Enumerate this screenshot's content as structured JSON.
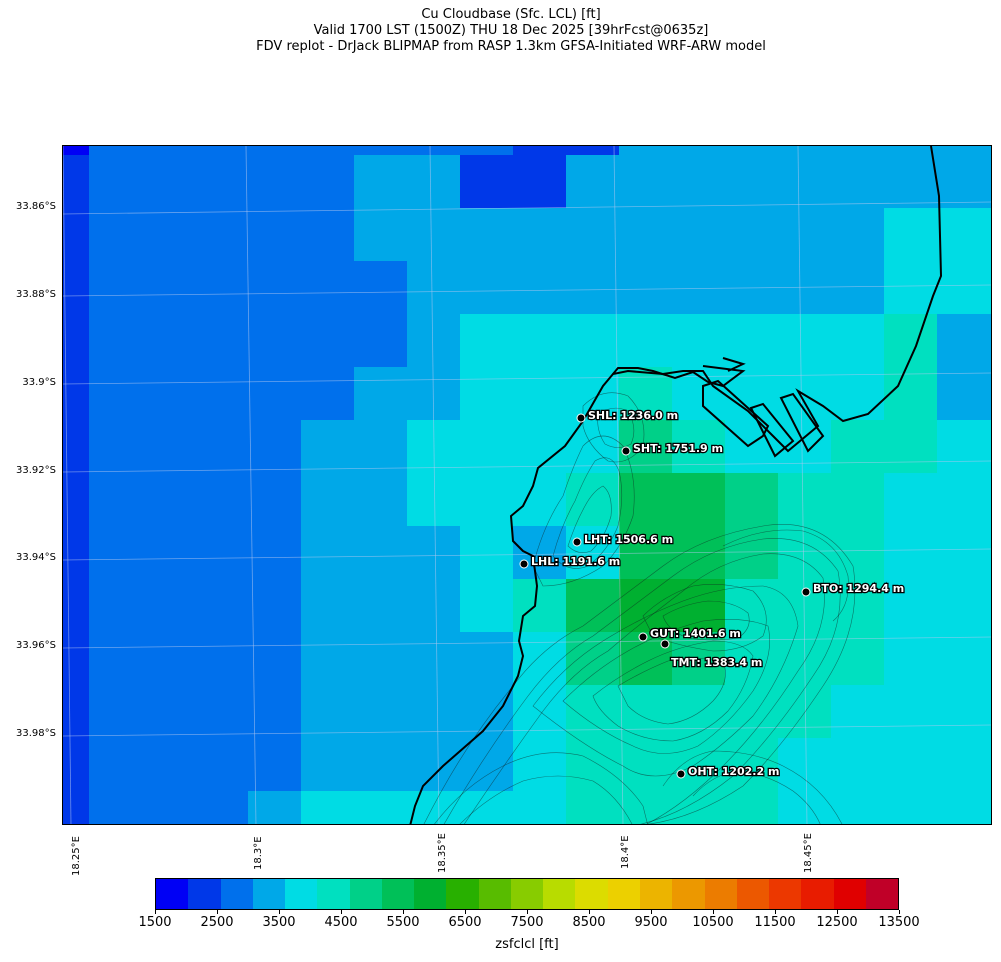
{
  "title": {
    "line1": "Cu Cloudbase (Sfc. LCL) [ft]",
    "line2": "Valid 1700 LST (1500Z) THU 18 Dec 2025 [39hrFcst@0635z]",
    "line3": "FDV replot - DrJack BLIPMAP from RASP 1.3km GFSA-Initiated WRF-ARW model"
  },
  "axes": {
    "lat_labels": [
      "33.86°S",
      "33.88°S",
      "33.9°S",
      "33.92°S",
      "33.94°S",
      "33.96°S",
      "33.98°S"
    ],
    "lon_labels": [
      "18.25°E",
      "18.3°E",
      "18.35°E",
      "18.4°E",
      "18.45°E"
    ]
  },
  "sites": [
    {
      "label": "SHL: 1236.0 m"
    },
    {
      "label": "SHT: 1751.9 m"
    },
    {
      "label": "LHT: 1506.6 m"
    },
    {
      "label": "LHL: 1191.6 m"
    },
    {
      "label": "BTO: 1294.4 m"
    },
    {
      "label": "GUT: 1401.6 m"
    },
    {
      "label": "TMT: 1383.4 m"
    },
    {
      "label": "OHT: 1202.2 m"
    }
  ],
  "colorbar": {
    "label": "zsfclcl [ft]",
    "ticks": [
      "1500",
      "2500",
      "3500",
      "4500",
      "5500",
      "6500",
      "7500",
      "8500",
      "9500",
      "10500",
      "11500",
      "12500",
      "13500"
    ],
    "colors": [
      "#0000f5",
      "#0038e8",
      "#0070ec",
      "#00a8e8",
      "#00dce4",
      "#00e0c0",
      "#00d088",
      "#00c058",
      "#00b030",
      "#28b000",
      "#58bc00",
      "#88cc00",
      "#b8dc00",
      "#dcdc00",
      "#ecd000",
      "#ecb400",
      "#ec9800",
      "#ec7c00",
      "#ec5800",
      "#ec3800",
      "#e81c00",
      "#e00000",
      "#c00028"
    ]
  },
  "grid_values": [
    [
      0,
      2,
      2,
      2,
      2,
      2,
      2,
      2,
      2,
      1,
      1,
      3,
      3,
      3,
      3,
      3,
      3,
      3
    ],
    [
      1,
      2,
      2,
      2,
      2,
      2,
      3,
      3,
      1,
      1,
      3,
      3,
      3,
      3,
      3,
      3,
      3,
      3
    ],
    [
      1,
      2,
      2,
      2,
      2,
      2,
      3,
      3,
      3,
      3,
      3,
      3,
      3,
      3,
      3,
      3,
      4,
      4
    ],
    [
      1,
      2,
      2,
      2,
      2,
      2,
      2,
      3,
      3,
      3,
      3,
      3,
      3,
      3,
      3,
      3,
      4,
      4
    ],
    [
      1,
      2,
      2,
      2,
      2,
      2,
      2,
      3,
      4,
      4,
      4,
      4,
      4,
      4,
      4,
      4,
      5,
      3
    ],
    [
      1,
      2,
      2,
      2,
      2,
      2,
      3,
      3,
      4,
      4,
      4,
      5,
      4,
      4,
      4,
      4,
      5,
      3
    ],
    [
      1,
      2,
      2,
      2,
      2,
      3,
      3,
      4,
      4,
      4,
      4,
      6,
      5,
      4,
      4,
      5,
      5,
      4
    ],
    [
      1,
      2,
      2,
      2,
      2,
      3,
      3,
      4,
      4,
      4,
      5,
      7,
      7,
      6,
      5,
      5,
      4,
      4
    ],
    [
      1,
      2,
      2,
      2,
      2,
      3,
      3,
      3,
      4,
      3,
      4,
      7,
      7,
      6,
      5,
      5,
      4,
      4
    ],
    [
      1,
      2,
      2,
      2,
      2,
      3,
      3,
      3,
      4,
      5,
      7,
      8,
      8,
      5,
      5,
      5,
      4,
      4
    ],
    [
      1,
      2,
      2,
      2,
      2,
      3,
      3,
      3,
      3,
      4,
      6,
      7,
      6,
      5,
      5,
      5,
      4,
      4
    ],
    [
      1,
      2,
      2,
      2,
      2,
      3,
      3,
      3,
      3,
      4,
      5,
      5,
      5,
      5,
      5,
      4,
      4,
      4
    ],
    [
      1,
      2,
      2,
      2,
      2,
      3,
      3,
      3,
      3,
      4,
      5,
      5,
      5,
      5,
      4,
      4,
      4,
      4
    ],
    [
      1,
      2,
      2,
      2,
      3,
      4,
      4,
      4,
      4,
      4,
      5,
      5,
      5,
      5,
      4,
      4,
      4,
      4
    ],
    [
      1,
      2,
      2,
      2,
      3,
      3,
      4,
      4,
      3,
      4,
      5,
      5,
      5,
      5,
      4,
      4,
      4,
      4
    ]
  ]
}
